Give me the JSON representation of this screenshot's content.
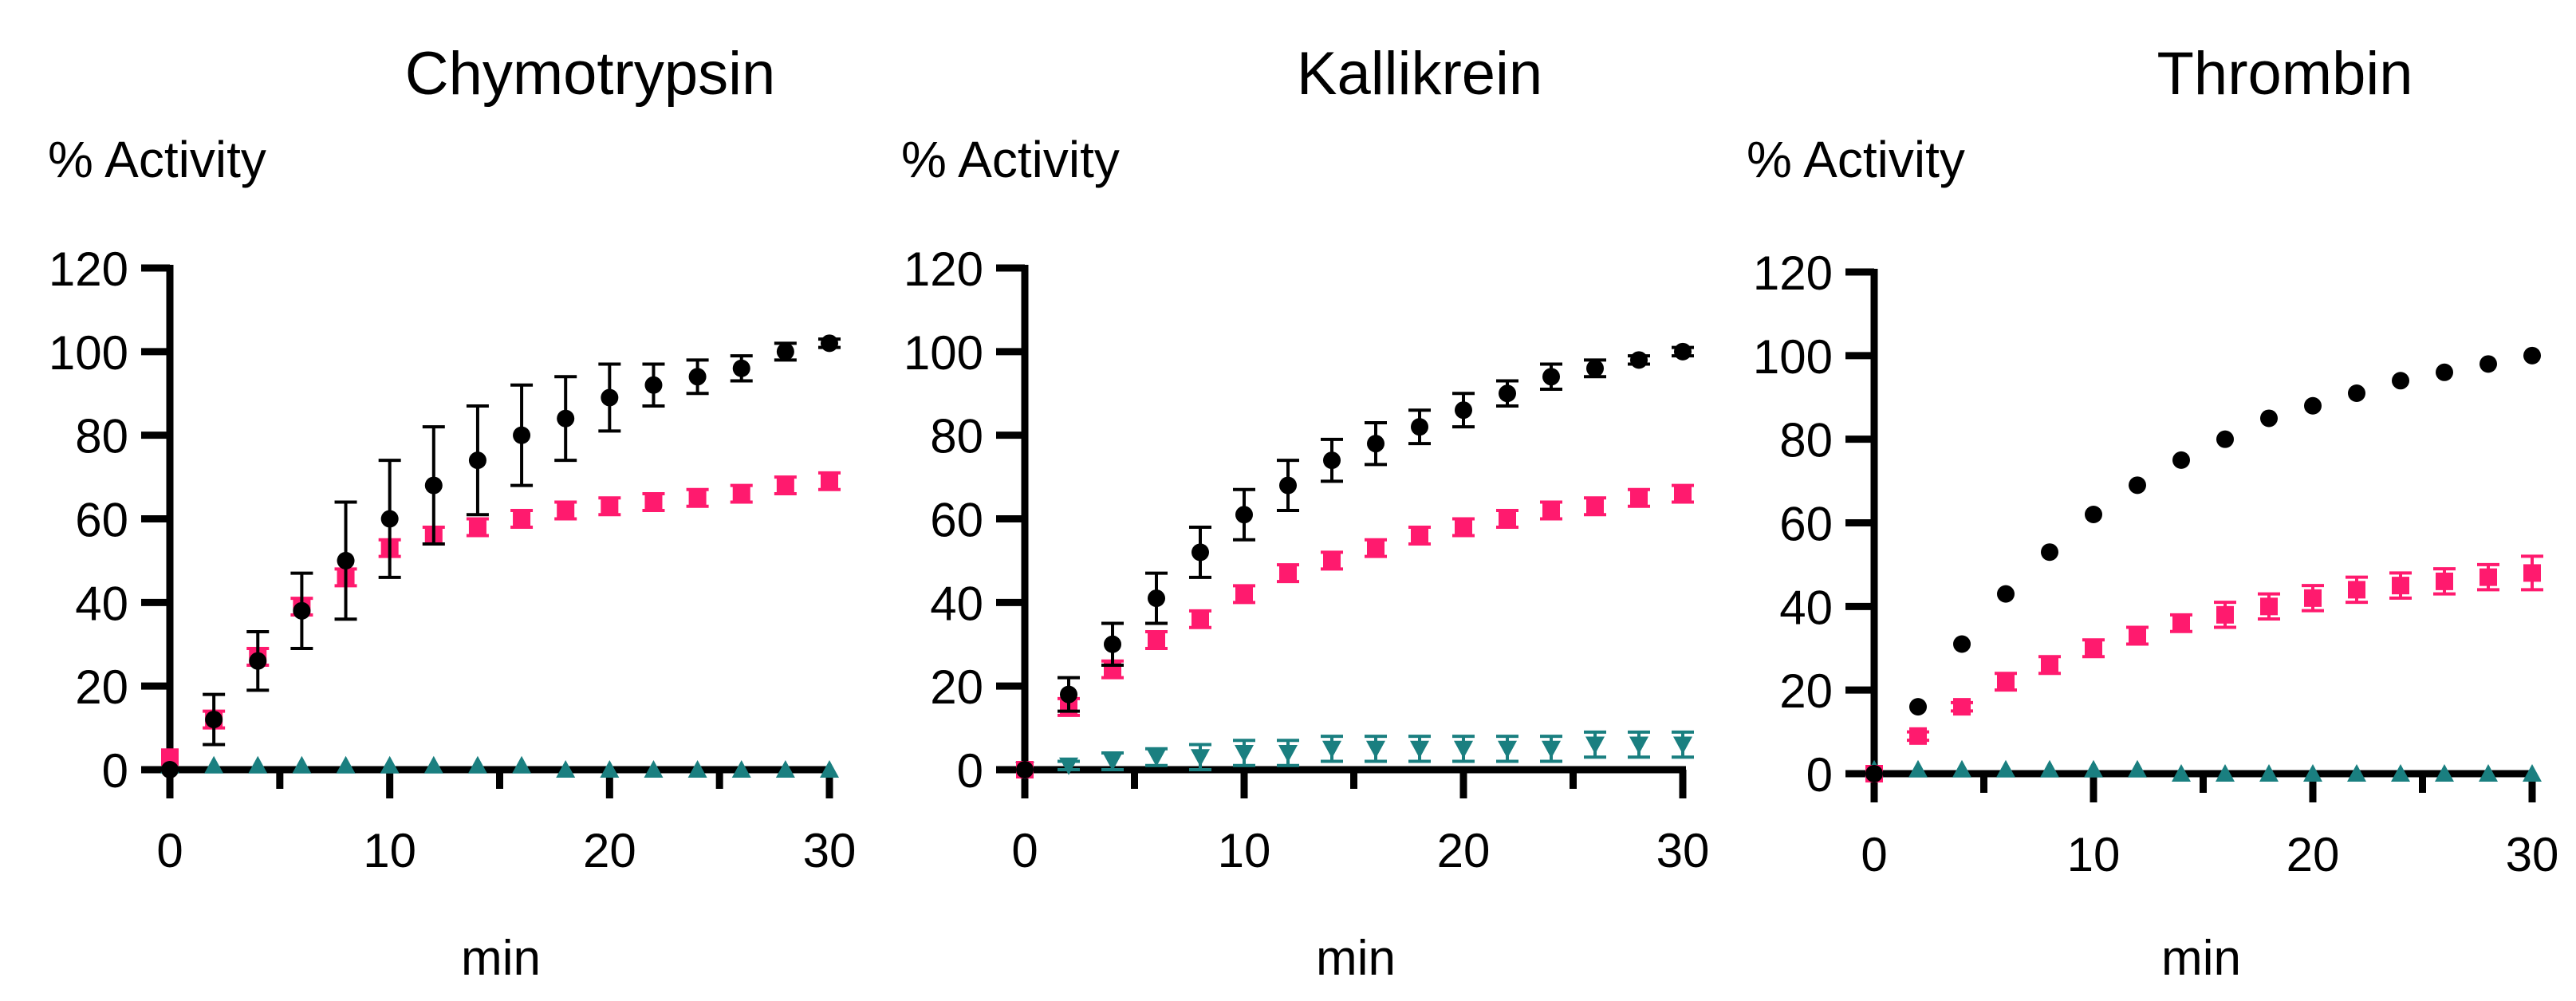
{
  "chart_data": [
    {
      "type": "scatter",
      "title": "Chymotrypsin",
      "ylabel": "% Activity",
      "xlabel": "min",
      "xlim": [
        0,
        30
      ],
      "ylim": [
        0,
        120
      ],
      "xticks": [
        0,
        10,
        20,
        30
      ],
      "yticks": [
        0,
        20,
        40,
        60,
        80,
        100,
        120
      ],
      "series": [
        {
          "name": "black",
          "color": "#000000",
          "marker": "circle",
          "x": [
            0,
            2,
            4,
            6,
            8,
            10,
            12,
            14,
            16,
            18,
            20,
            22,
            24,
            26,
            28,
            30
          ],
          "values": [
            0,
            12,
            26,
            38,
            50,
            60,
            68,
            74,
            80,
            84,
            89,
            92,
            94,
            96,
            100,
            102
          ],
          "errors": [
            0,
            6,
            7,
            9,
            14,
            14,
            14,
            13,
            12,
            10,
            8,
            5,
            4,
            3,
            2,
            1
          ]
        },
        {
          "name": "pink",
          "color": "#ff1a6e",
          "marker": "square",
          "x": [
            0,
            2,
            4,
            6,
            8,
            10,
            12,
            14,
            16,
            18,
            20,
            22,
            24,
            26,
            28,
            30
          ],
          "values": [
            3,
            12,
            27,
            39,
            46,
            53,
            56,
            58,
            60,
            62,
            63,
            64,
            65,
            66,
            68,
            69
          ],
          "errors": [
            0,
            2,
            2,
            2,
            2,
            2,
            2,
            2,
            2,
            2,
            2,
            2,
            2,
            2,
            2,
            2
          ]
        },
        {
          "name": "teal",
          "color": "#1a7f80",
          "marker": "triangle",
          "x": [
            0,
            2,
            4,
            6,
            8,
            10,
            12,
            14,
            16,
            18,
            20,
            22,
            24,
            26,
            28,
            30
          ],
          "values": [
            1,
            1,
            1,
            1,
            1,
            1,
            1,
            1,
            1,
            0,
            0,
            0,
            0,
            0,
            0,
            0
          ],
          "errors": [
            0,
            0,
            0,
            0,
            0,
            0,
            0,
            0,
            0,
            0,
            0,
            0,
            0,
            0,
            0,
            0
          ]
        }
      ]
    },
    {
      "type": "scatter",
      "title": "Kallikrein",
      "ylabel": "% Activity",
      "xlabel": "min",
      "xlim": [
        0,
        30
      ],
      "ylim": [
        0,
        120
      ],
      "xticks": [
        0,
        10,
        20,
        30
      ],
      "yticks": [
        0,
        20,
        40,
        60,
        80,
        100,
        120
      ],
      "series": [
        {
          "name": "black",
          "color": "#000000",
          "marker": "circle",
          "x": [
            0,
            2,
            4,
            6,
            8,
            10,
            12,
            14,
            16,
            18,
            20,
            22,
            24,
            26,
            28,
            30
          ],
          "values": [
            0,
            18,
            30,
            41,
            52,
            61,
            68,
            74,
            78,
            82,
            86,
            90,
            94,
            96,
            98,
            100
          ],
          "errors": [
            0,
            4,
            5,
            6,
            6,
            6,
            6,
            5,
            5,
            4,
            4,
            3,
            3,
            2,
            1,
            1
          ]
        },
        {
          "name": "pink",
          "color": "#ff1a6e",
          "marker": "square",
          "x": [
            0,
            2,
            4,
            6,
            8,
            10,
            12,
            14,
            16,
            18,
            20,
            22,
            24,
            26,
            28,
            30
          ],
          "values": [
            0,
            15,
            24,
            31,
            36,
            42,
            47,
            50,
            53,
            56,
            58,
            60,
            62,
            63,
            65,
            66
          ],
          "errors": [
            0,
            2,
            2,
            2,
            2,
            2,
            2,
            2,
            2,
            2,
            2,
            2,
            2,
            2,
            2,
            2
          ]
        },
        {
          "name": "teal",
          "color": "#1a7f80",
          "marker": "triangle-down",
          "x": [
            0,
            2,
            4,
            6,
            8,
            10,
            12,
            14,
            16,
            18,
            20,
            22,
            24,
            26,
            28,
            30
          ],
          "values": [
            0,
            1,
            2,
            3,
            3,
            4,
            4,
            5,
            5,
            5,
            5,
            5,
            5,
            6,
            6,
            6
          ],
          "errors": [
            0,
            1,
            2,
            2,
            3,
            3,
            3,
            3,
            3,
            3,
            3,
            3,
            3,
            3,
            3,
            3
          ]
        }
      ]
    },
    {
      "type": "scatter",
      "title": "Thrombin",
      "ylabel": "% Activity",
      "xlabel": "min",
      "xlim": [
        0,
        30
      ],
      "ylim": [
        0,
        120
      ],
      "xticks": [
        0,
        10,
        20,
        30
      ],
      "yticks": [
        0,
        20,
        40,
        60,
        80,
        100,
        120
      ],
      "series": [
        {
          "name": "black",
          "color": "#000000",
          "marker": "circle",
          "x": [
            0,
            2,
            4,
            6,
            8,
            10,
            12,
            14,
            16,
            18,
            20,
            22,
            24,
            26,
            28,
            30
          ],
          "values": [
            0,
            16,
            31,
            43,
            53,
            62,
            69,
            75,
            80,
            85,
            88,
            91,
            94,
            96,
            98,
            100
          ],
          "errors": [
            0,
            0,
            0,
            0,
            0,
            0,
            0,
            0,
            0,
            0,
            0,
            0,
            0,
            0,
            0,
            0
          ]
        },
        {
          "name": "pink",
          "color": "#ff1a6e",
          "marker": "square",
          "x": [
            0,
            2,
            4,
            6,
            8,
            10,
            12,
            14,
            16,
            18,
            20,
            22,
            24,
            26,
            28,
            30
          ],
          "values": [
            0,
            9,
            16,
            22,
            26,
            30,
            33,
            36,
            38,
            40,
            42,
            44,
            45,
            46,
            47,
            48
          ],
          "errors": [
            0,
            1,
            1,
            2,
            2,
            2,
            2,
            2,
            3,
            3,
            3,
            3,
            3,
            3,
            3,
            4
          ]
        },
        {
          "name": "teal",
          "color": "#1a7f80",
          "marker": "triangle",
          "x": [
            0,
            2,
            4,
            6,
            8,
            10,
            12,
            14,
            16,
            18,
            20,
            22,
            24,
            26,
            28,
            30
          ],
          "values": [
            1,
            1,
            1,
            1,
            1,
            1,
            1,
            0,
            0,
            0,
            0,
            0,
            0,
            0,
            0,
            0
          ],
          "errors": [
            0,
            0,
            0,
            0,
            0,
            0,
            0,
            0,
            0,
            0,
            0,
            0,
            0,
            0,
            0,
            0
          ]
        }
      ]
    }
  ]
}
